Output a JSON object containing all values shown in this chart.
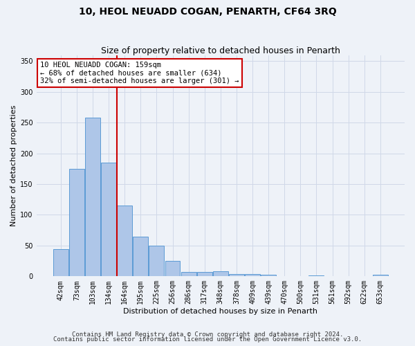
{
  "title": "10, HEOL NEUADD COGAN, PENARTH, CF64 3RQ",
  "subtitle": "Size of property relative to detached houses in Penarth",
  "xlabel": "Distribution of detached houses by size in Penarth",
  "ylabel": "Number of detached properties",
  "categories": [
    "42sqm",
    "73sqm",
    "103sqm",
    "134sqm",
    "164sqm",
    "195sqm",
    "225sqm",
    "256sqm",
    "286sqm",
    "317sqm",
    "348sqm",
    "378sqm",
    "409sqm",
    "439sqm",
    "470sqm",
    "500sqm",
    "531sqm",
    "561sqm",
    "592sqm",
    "622sqm",
    "653sqm"
  ],
  "values": [
    44,
    175,
    258,
    185,
    115,
    64,
    50,
    25,
    7,
    7,
    8,
    4,
    4,
    3,
    0,
    0,
    2,
    0,
    0,
    0,
    3
  ],
  "bar_color": "#aec6e8",
  "bar_edge_color": "#5b9bd5",
  "vline_x_index": 4,
  "vline_color": "#cc0000",
  "annotation_text": "10 HEOL NEUADD COGAN: 159sqm\n← 68% of detached houses are smaller (634)\n32% of semi-detached houses are larger (301) →",
  "annotation_box_color": "#ffffff",
  "annotation_box_edge": "#cc0000",
  "ylim": [
    0,
    360
  ],
  "yticks": [
    0,
    50,
    100,
    150,
    200,
    250,
    300,
    350
  ],
  "grid_color": "#d0d8e8",
  "background_color": "#eef2f8",
  "footer_line1": "Contains HM Land Registry data © Crown copyright and database right 2024.",
  "footer_line2": "Contains public sector information licensed under the Open Government Licence v3.0.",
  "title_fontsize": 10,
  "subtitle_fontsize": 9,
  "xlabel_fontsize": 8,
  "ylabel_fontsize": 8,
  "tick_fontsize": 7,
  "annotation_fontsize": 7.5,
  "footer_fontsize": 6.5
}
